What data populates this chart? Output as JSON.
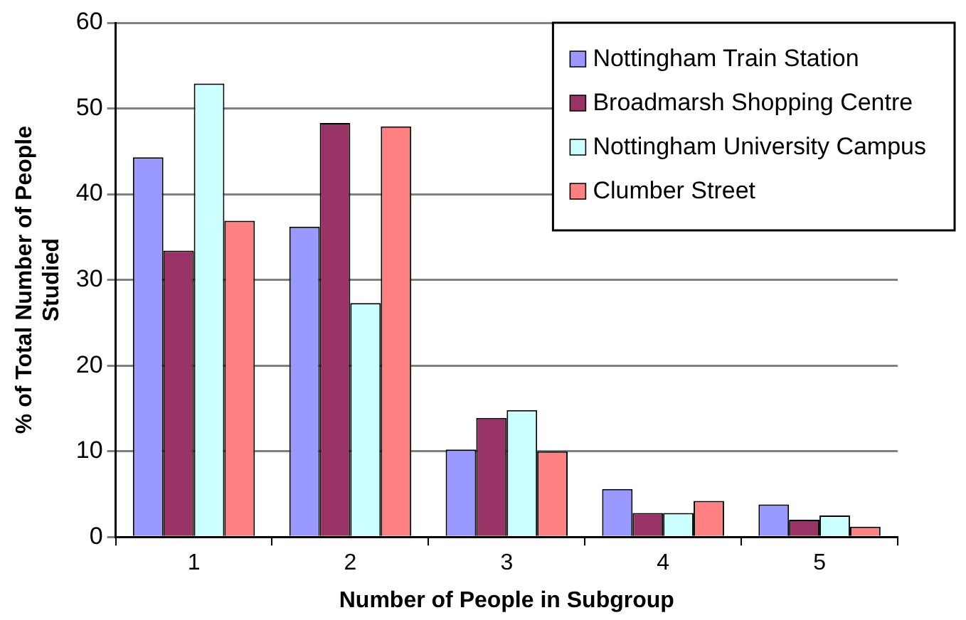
{
  "chart_data": {
    "type": "bar",
    "xlabel": "Number of People in Subgroup",
    "ylabel": "% of Total Number of People Studied",
    "categories": [
      "1",
      "2",
      "3",
      "4",
      "5"
    ],
    "series": [
      {
        "name": "Nottingham Train Station",
        "color": "#9999ff",
        "values": [
          44.3,
          36.2,
          10.2,
          5.6,
          3.8
        ]
      },
      {
        "name": "Broadmarsh Shopping Centre",
        "color": "#993366",
        "values": [
          33.4,
          48.3,
          13.9,
          2.8,
          2.0
        ]
      },
      {
        "name": "Nottingham University Campus",
        "color": "#ccffff",
        "values": [
          52.9,
          27.3,
          14.8,
          2.8,
          2.5
        ]
      },
      {
        "name": "Clumber Street",
        "color": "#ff8080",
        "values": [
          36.9,
          47.9,
          10.0,
          4.2,
          1.2
        ]
      }
    ],
    "ylim": [
      0,
      60
    ],
    "yticks": [
      0,
      10,
      20,
      30,
      40,
      50,
      60
    ],
    "grid": "y",
    "legend": "top right"
  }
}
